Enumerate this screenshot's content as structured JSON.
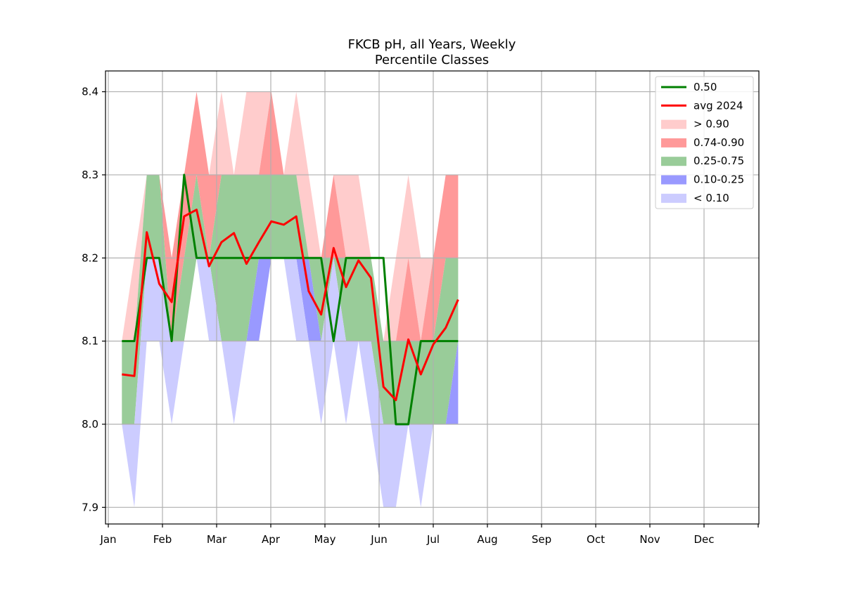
{
  "chart_data": {
    "type": "area",
    "title": [
      "FKCB pH, all Years, Weekly",
      "Percentile Classes"
    ],
    "xlabel": "",
    "ylabel": "",
    "xlim": [
      0,
      12
    ],
    "ylim": [
      7.88,
      8.425
    ],
    "x_tick_labels": [
      "Jan",
      "Feb",
      "Mar",
      "Apr",
      "May",
      "Jun",
      "Jul",
      "Aug",
      "Sep",
      "Oct",
      "Nov",
      "Dec"
    ],
    "y_ticks": [
      7.9,
      8.0,
      8.1,
      8.2,
      8.3,
      8.4
    ],
    "y_tick_labels": [
      "7.9",
      "8.0",
      "8.1",
      "8.2",
      "8.3",
      "8.4"
    ],
    "grid": true,
    "legend_position": "top-right",
    "x": [
      0.25,
      0.48,
      0.71,
      0.94,
      1.17,
      1.4,
      1.63,
      1.86,
      2.09,
      2.32,
      2.55,
      2.78,
      3.01,
      3.24,
      3.47,
      3.7,
      3.93,
      4.16,
      4.39,
      4.62,
      4.85,
      5.08,
      5.31,
      5.54,
      5.77,
      6.0,
      6.23,
      6.46
    ],
    "bands": {
      "min": [
        8.0,
        7.9,
        8.1,
        8.1,
        8.0,
        8.1,
        8.2,
        8.1,
        8.1,
        8.0,
        8.1,
        8.1,
        8.2,
        8.2,
        8.1,
        8.1,
        8.0,
        8.1,
        8.0,
        8.1,
        8.0,
        7.9,
        7.9,
        8.0,
        7.9,
        8.0,
        8.0,
        8.0
      ],
      "p10": [
        8.0,
        8.0,
        8.2,
        8.2,
        8.1,
        8.1,
        8.2,
        8.2,
        8.1,
        8.1,
        8.1,
        8.1,
        8.2,
        8.2,
        8.2,
        8.1,
        8.1,
        8.2,
        8.1,
        8.1,
        8.1,
        8.0,
        8.0,
        8.0,
        8.0,
        8.0,
        8.0,
        8.0
      ],
      "p25": [
        8.0,
        8.0,
        8.2,
        8.2,
        8.1,
        8.1,
        8.2,
        8.2,
        8.1,
        8.1,
        8.1,
        8.2,
        8.2,
        8.2,
        8.2,
        8.2,
        8.1,
        8.2,
        8.1,
        8.1,
        8.1,
        8.0,
        8.0,
        8.0,
        8.0,
        8.0,
        8.0,
        8.1
      ],
      "p75": [
        8.1,
        8.1,
        8.3,
        8.3,
        8.1,
        8.2,
        8.3,
        8.2,
        8.3,
        8.3,
        8.3,
        8.3,
        8.3,
        8.3,
        8.3,
        8.2,
        8.2,
        8.2,
        8.2,
        8.2,
        8.2,
        8.1,
        8.1,
        8.1,
        8.1,
        8.1,
        8.2,
        8.2
      ],
      "p90": [
        8.1,
        8.1,
        8.3,
        8.3,
        8.2,
        8.3,
        8.4,
        8.3,
        8.3,
        8.3,
        8.3,
        8.3,
        8.4,
        8.3,
        8.3,
        8.2,
        8.2,
        8.3,
        8.2,
        8.2,
        8.2,
        8.1,
        8.1,
        8.2,
        8.1,
        8.2,
        8.3,
        8.3
      ],
      "max": [
        8.1,
        8.2,
        8.3,
        8.3,
        8.2,
        8.3,
        8.4,
        8.3,
        8.4,
        8.3,
        8.4,
        8.4,
        8.4,
        8.3,
        8.4,
        8.3,
        8.2,
        8.3,
        8.3,
        8.3,
        8.2,
        8.1,
        8.2,
        8.3,
        8.2,
        8.2,
        8.3,
        8.3
      ]
    },
    "series": [
      {
        "name": "0.50",
        "color": "#008000",
        "values": [
          8.1,
          8.1,
          8.2,
          8.2,
          8.1,
          8.3,
          8.2,
          8.2,
          8.2,
          8.2,
          8.2,
          8.2,
          8.2,
          8.2,
          8.2,
          8.2,
          8.2,
          8.1,
          8.2,
          8.2,
          8.2,
          8.2,
          8.0,
          8.0,
          8.1,
          8.1,
          8.1,
          8.1
        ]
      },
      {
        "name": "avg 2024",
        "color": "#ff0000",
        "values": [
          8.06,
          8.058,
          8.231,
          8.169,
          8.147,
          8.25,
          8.258,
          8.19,
          8.219,
          8.23,
          8.193,
          8.219,
          8.244,
          8.24,
          8.25,
          8.16,
          8.132,
          8.212,
          8.165,
          8.197,
          8.176,
          8.045,
          8.029,
          8.102,
          8.06,
          8.096,
          8.116,
          8.15
        ]
      }
    ],
    "band_legend": [
      {
        "name": "> 0.90",
        "color": "#ffcccc"
      },
      {
        "name": "0.74-0.90",
        "color": "#ff9999"
      },
      {
        "name": "0.25-0.75",
        "color": "#99cc99"
      },
      {
        "name": "0.10-0.25",
        "color": "#9999ff"
      },
      {
        "name": "< 0.10",
        "color": "#ccccff"
      }
    ]
  }
}
